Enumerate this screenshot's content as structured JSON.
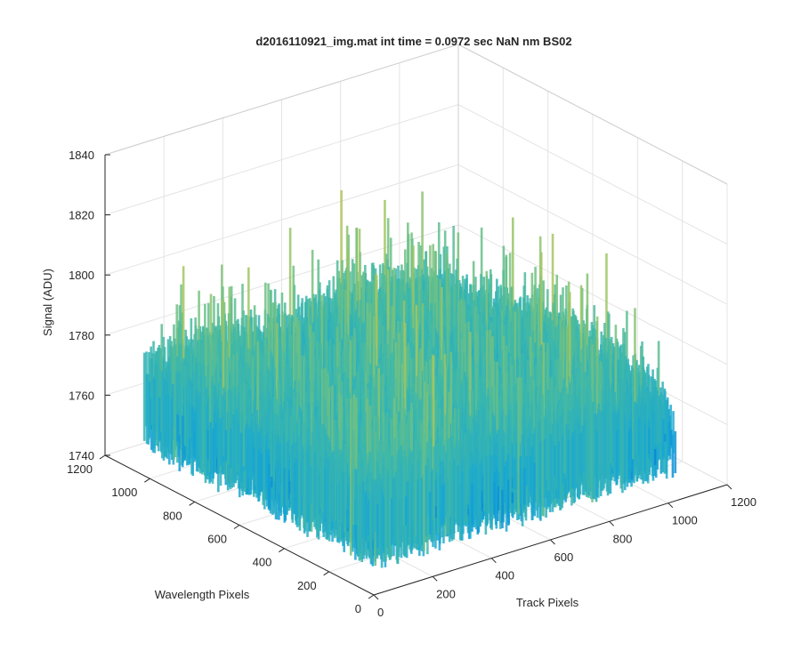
{
  "chart_data": {
    "type": "surface",
    "title": "d2016110921_img.mat int time = 0.0972 sec  NaN nm BS02",
    "xlabel": "Track Pixels",
    "ylabel": "Wavelength Pixels",
    "zlabel": "Signal (ADU)",
    "xlim": [
      0,
      1200
    ],
    "ylim": [
      0,
      1200
    ],
    "zlim": [
      1740,
      1840
    ],
    "xticks": [
      "0",
      "200",
      "400",
      "600",
      "800",
      "1000",
      "1200"
    ],
    "yticks": [
      "0",
      "200",
      "400",
      "600",
      "800",
      "1000",
      "1200"
    ],
    "zticks": [
      "1740",
      "1760",
      "1780",
      "1800",
      "1820",
      "1840"
    ],
    "data_extent": {
      "x": [
        0,
        1024
      ],
      "y": [
        0,
        1024
      ]
    },
    "baseline_signal": 1775,
    "signal_range": [
      1752,
      1820
    ],
    "noise_amplitude": 14,
    "grid": true,
    "colormap": [
      "#0072d9",
      "#17a6d4",
      "#3fb8a8",
      "#7cc27a",
      "#c8c84a"
    ]
  }
}
